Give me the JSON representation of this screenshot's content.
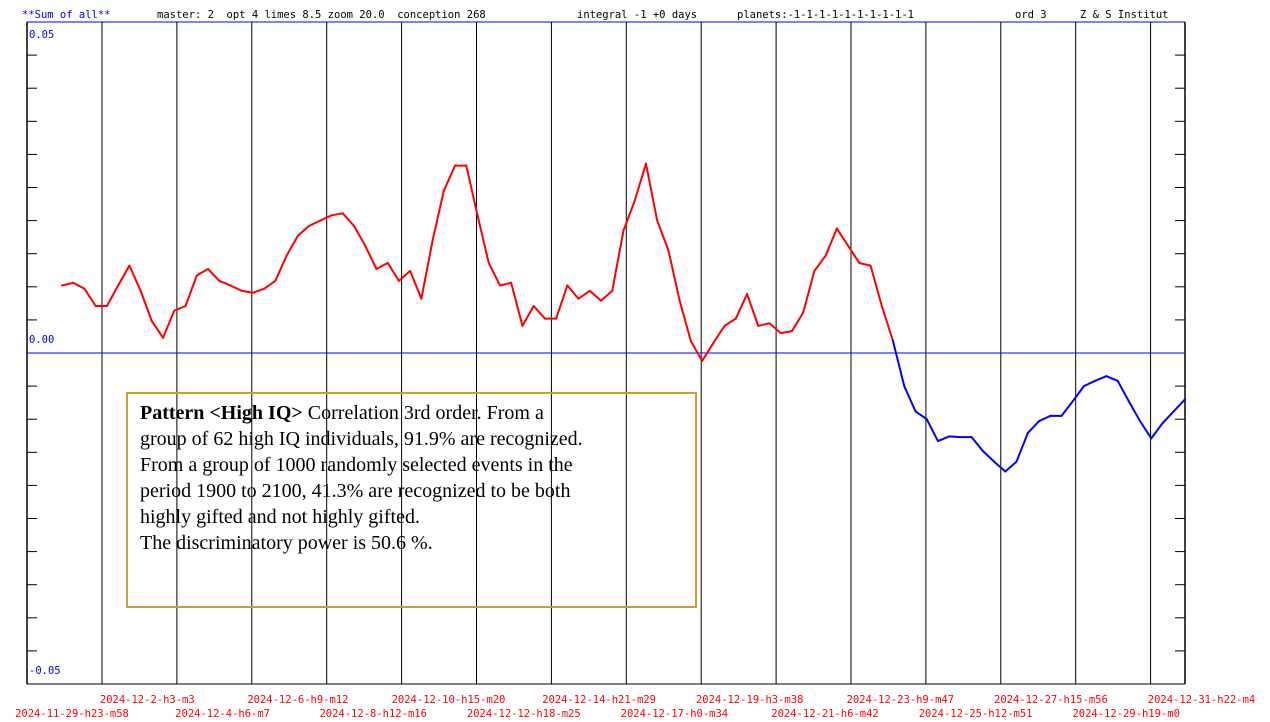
{
  "chart_data": {
    "type": "line",
    "header": [
      {
        "text": "**Sum of all**",
        "color": "#0000ff"
      },
      {
        "text": "master: 2  opt 4 limes 8.5 zoom 20.0  conception 268",
        "color": "#000000"
      },
      {
        "text": "integral -1 +0 days",
        "color": "#000000"
      },
      {
        "text": "planets:-1-1-1-1-1-1-1-1-1-1",
        "color": "#000000"
      },
      {
        "text": "ord 3",
        "color": "#000000"
      },
      {
        "text": "Z & S Institut",
        "color": "#000000"
      }
    ],
    "xtick_labels": [
      "2024-11-29-h23-m58",
      "2024-12-2-h3-m3",
      "2024-12-4-h6-m7",
      "2024-12-6-h9-m12",
      "2024-12-8-h12-m16",
      "2024-12-10-h15-m20",
      "2024-12-12-h18-m25",
      "2024-12-14-h21-m29",
      "2024-12-17-h0-m34",
      "2024-12-19-h3-m38",
      "2024-12-21-h6-m42",
      "2024-12-23-h9-m47",
      "2024-12-25-h12-m51",
      "2024-12-27-h15-m56",
      "2024-12-29-h19-m0",
      "2024-12-31-h22-m4"
    ],
    "xtick_color": "#ff0000",
    "ylim": [
      -0.05,
      0.05
    ],
    "yticks": [
      {
        "value": -0.05,
        "label": "-0.05"
      },
      {
        "value": 0,
        "label": "0.00"
      },
      {
        "value": 0.05,
        "label": "0.05"
      }
    ],
    "axis_color": "#0000ff",
    "color_positive": "#ff0000",
    "color_negative": "#0000ff",
    "values": [
      0.0102,
      0.0106,
      0.0097,
      0.0071,
      0.0071,
      0.0102,
      0.0132,
      0.0094,
      0.0048,
      0.0023,
      0.0064,
      0.0071,
      0.0117,
      0.0127,
      0.0109,
      0.0102,
      0.0094,
      0.0091,
      0.0097,
      0.0109,
      0.0147,
      0.0177,
      0.0192,
      0.02,
      0.0208,
      0.0211,
      0.0192,
      0.0162,
      0.0127,
      0.0136,
      0.0109,
      0.0124,
      0.0082,
      0.017,
      0.0245,
      0.0283,
      0.0283,
      0.0208,
      0.0136,
      0.0102,
      0.0106,
      0.0041,
      0.0071,
      0.0052,
      0.0052,
      0.0102,
      0.0082,
      0.0094,
      0.0079,
      0.0094,
      0.0185,
      0.023,
      0.0286,
      0.02,
      0.0155,
      0.0079,
      0.0018,
      -0.0012,
      0.0015,
      0.0041,
      0.0052,
      0.0089,
      0.0041,
      0.0045,
      0.003,
      0.0033,
      0.0061,
      0.0124,
      0.0147,
      0.0188,
      0.0162,
      0.0136,
      0.0132,
      0.0071,
      0.0018,
      -0.005,
      -0.0088,
      -0.01,
      -0.0133,
      -0.0126,
      -0.0127,
      -0.0127,
      -0.0148,
      -0.0164,
      -0.0179,
      -0.0164,
      -0.0121,
      -0.0103,
      -0.0095,
      -0.0095,
      -0.0073,
      -0.005,
      -0.0042,
      -0.0035,
      -0.0042,
      -0.0073,
      -0.0103,
      -0.0129,
      -0.0106,
      -0.0088,
      -0.007
    ],
    "annotation": {
      "bold": "Pattern <High IQ>",
      "lines": [
        " Correlation 3rd order. From a",
        "group of 62 high IQ individuals, 91.9% are recognized.",
        "From a group of 1000 randomly selected events in the",
        "period 1900 to 2100, 41.3% are recognized to be both",
        "highly gifted and not highly gifted.",
        "The discriminatory power is 50.6 %."
      ]
    }
  }
}
